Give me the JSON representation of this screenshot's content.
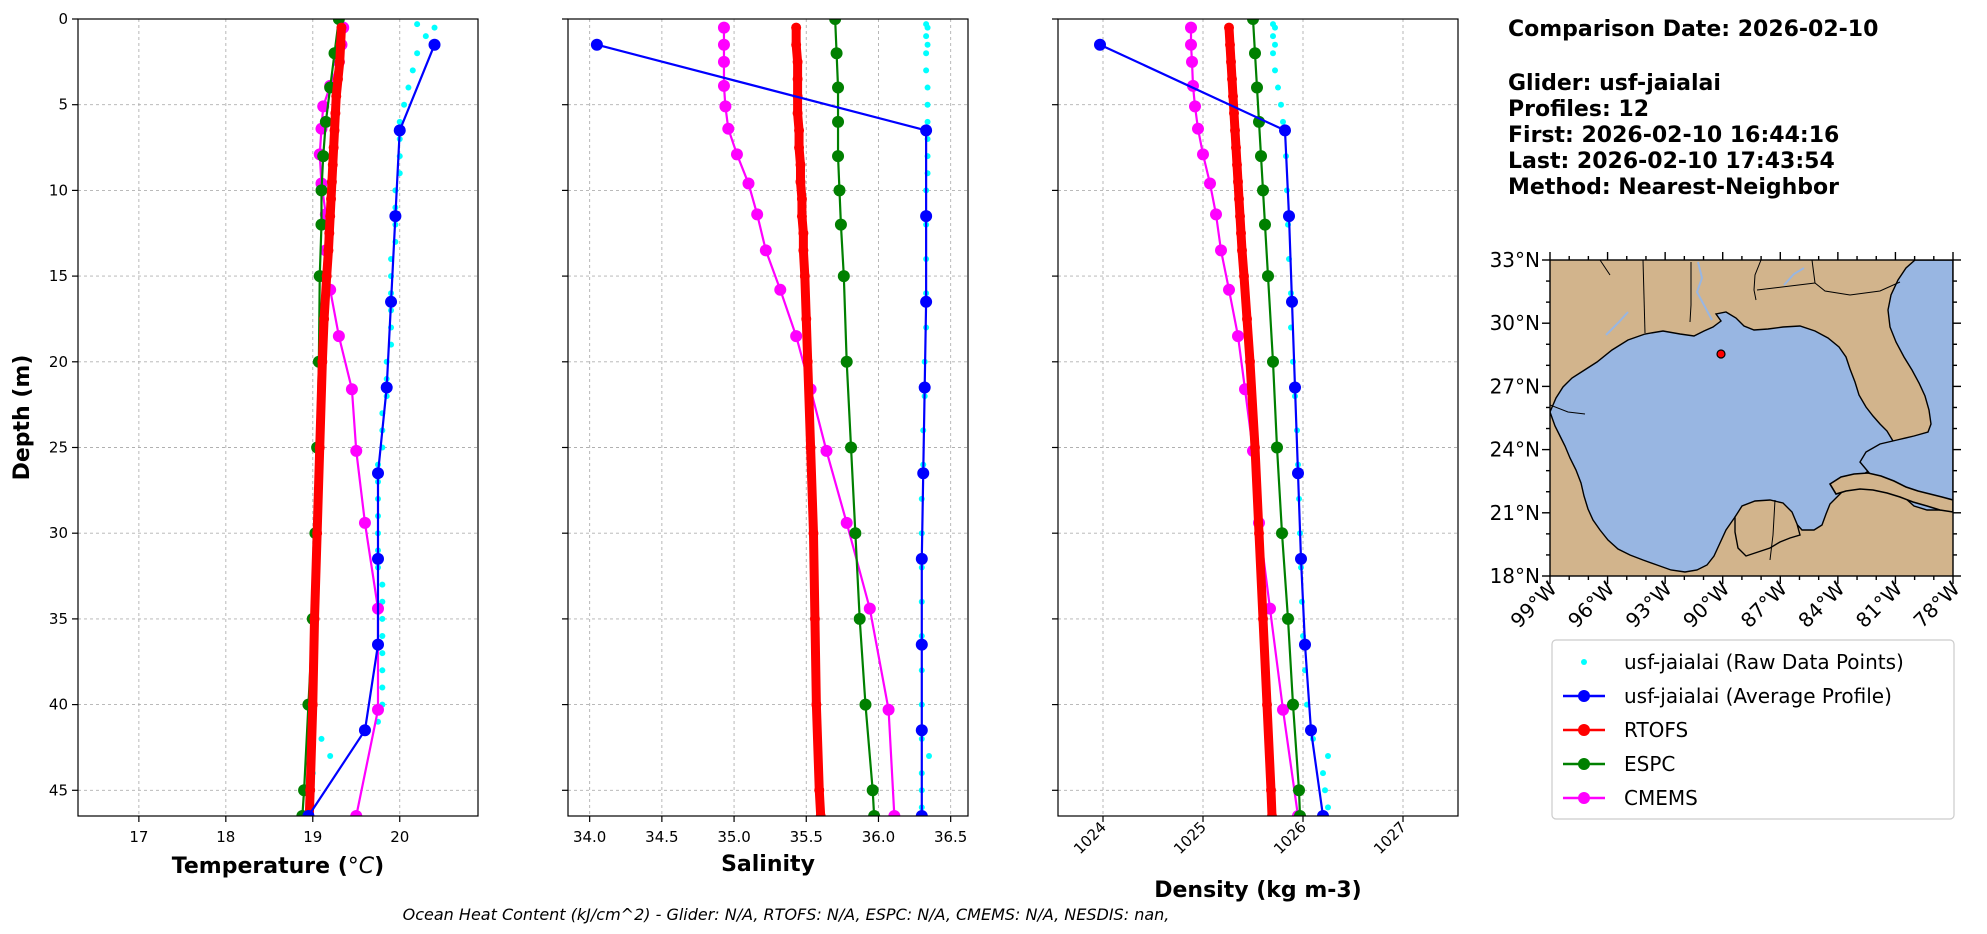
{
  "info": {
    "comparison_date": "Comparison Date: 2026-02-10",
    "glider": "Glider: usf-jaialai",
    "profiles": "Profiles: 12",
    "first": "First: 2026-02-10 16:44:16",
    "last": "Last: 2026-02-10 17:43:54",
    "method": "Method: Nearest-Neighbor"
  },
  "footer": "Ocean Heat Content (kJ/cm^2) - Glider: N/A,  RTOFS: N/A,  ESPC: N/A,  CMEMS: N/A,  NESDIS: nan,",
  "colors": {
    "raw": "#00ffff",
    "glider": "#0000ff",
    "rtofs": "#ff0000",
    "espc": "#008000",
    "cmems": "#ff00ff",
    "land": "#d2b48c",
    "ocean": "#98b6e2",
    "grid": "#b0b0b0"
  },
  "legend": [
    {
      "key": "raw",
      "label": "usf-jaialai (Raw Data Points)",
      "style": "points"
    },
    {
      "key": "glider",
      "label": "usf-jaialai (Average Profile)",
      "style": "line"
    },
    {
      "key": "rtofs",
      "label": "RTOFS",
      "style": "line"
    },
    {
      "key": "espc",
      "label": "ESPC",
      "style": "line"
    },
    {
      "key": "cmems",
      "label": "CMEMS",
      "style": "line"
    }
  ],
  "map": {
    "lon_ticks": [
      "99°W",
      "96°W",
      "93°W",
      "90°W",
      "87°W",
      "84°W",
      "81°W",
      "78°W"
    ],
    "lat_ticks": [
      "33°N",
      "30°N",
      "27°N",
      "24°N",
      "21°N",
      "18°N"
    ],
    "extent": {
      "lon": [
        -99,
        -78
      ],
      "lat": [
        18,
        33
      ]
    },
    "glider_position": {
      "lon": -90.0,
      "lat": 29.0
    }
  },
  "chart_data": [
    {
      "type": "line",
      "xlabel": "Temperature (°C)",
      "ylabel": "Depth (m)",
      "xlim": [
        16.3,
        20.9
      ],
      "ylim": [
        46.5,
        0
      ],
      "xticks": [
        17,
        18,
        19,
        20
      ],
      "yticks": [
        0,
        5,
        10,
        15,
        20,
        25,
        30,
        35,
        40,
        45
      ],
      "grid": true,
      "series": [
        {
          "name": "usf-jaialai (Raw Data Points)",
          "key": "raw",
          "style": "points",
          "depth": [
            0.3,
            0.5,
            1.0,
            1.5,
            2.0,
            3.0,
            4.0,
            5.0,
            6.0,
            7.0,
            8.0,
            9.0,
            10.0,
            11.0,
            12.0,
            13.0,
            14.0,
            15.0,
            16.0,
            17.0,
            18.0,
            19.0,
            20.0,
            21.0,
            22.0,
            23.0,
            24.0,
            25.0,
            26.0,
            27.0,
            28.0,
            29.0,
            30.0,
            31.0,
            32.0,
            33.0,
            34.0,
            35.0,
            36.0,
            37.0,
            38.0,
            39.0,
            40.0,
            41.0,
            42.0,
            43.0,
            44.0,
            45.0,
            46.0
          ],
          "values": [
            20.2,
            20.4,
            20.3,
            20.4,
            20.2,
            20.15,
            20.1,
            20.05,
            20.0,
            20.0,
            20.0,
            20.0,
            19.95,
            19.95,
            19.95,
            19.95,
            19.9,
            19.9,
            19.9,
            19.9,
            19.9,
            19.9,
            19.85,
            19.85,
            19.85,
            19.8,
            19.8,
            19.8,
            19.75,
            19.75,
            19.75,
            19.75,
            19.75,
            19.75,
            19.75,
            19.8,
            19.8,
            19.8,
            19.8,
            19.8,
            19.8,
            19.8,
            19.8,
            19.75,
            19.1,
            19.2,
            19.0,
            18.9,
            18.95
          ]
        },
        {
          "name": "usf-jaialai (Average Profile)",
          "key": "glider",
          "style": "line",
          "depth": [
            1.5,
            6.5,
            11.5,
            16.5,
            21.5,
            26.5,
            31.5,
            36.5,
            41.5,
            46.5
          ],
          "values": [
            20.4,
            20.0,
            19.95,
            19.9,
            19.85,
            19.75,
            19.75,
            19.75,
            19.6,
            18.95
          ]
        },
        {
          "name": "RTOFS",
          "key": "rtofs",
          "style": "thick",
          "depth": [
            0.5,
            1.5,
            2.5,
            3.5,
            4.5,
            5.5,
            6.5,
            7.5,
            8.5,
            9.5,
            10.5,
            11.5,
            12.5,
            13.5,
            15.0,
            17.5,
            20.0,
            25.0,
            30.0,
            35.0,
            40.0,
            45.0,
            46.5
          ],
          "values": [
            19.33,
            19.32,
            19.31,
            19.29,
            19.27,
            19.26,
            19.25,
            19.24,
            19.23,
            19.22,
            19.21,
            19.2,
            19.19,
            19.18,
            19.16,
            19.13,
            19.11,
            19.08,
            19.05,
            19.02,
            19.0,
            18.97,
            18.96
          ]
        },
        {
          "name": "ESPC",
          "key": "espc",
          "style": "line",
          "depth": [
            0.0,
            2.0,
            4.0,
            6.0,
            8.0,
            10.0,
            12.0,
            15.0,
            20.0,
            25.0,
            30.0,
            35.0,
            40.0,
            45.0,
            46.5
          ],
          "values": [
            19.3,
            19.25,
            19.2,
            19.15,
            19.12,
            19.1,
            19.1,
            19.08,
            19.07,
            19.05,
            19.03,
            19.0,
            18.95,
            18.9,
            18.88
          ]
        },
        {
          "name": "CMEMS",
          "key": "cmems",
          "style": "line",
          "depth": [
            0.5,
            1.5,
            2.5,
            3.9,
            5.1,
            6.4,
            7.9,
            9.6,
            11.4,
            13.5,
            15.8,
            18.5,
            21.6,
            25.2,
            29.4,
            34.4,
            40.3,
            46.5
          ],
          "values": [
            19.35,
            19.33,
            19.3,
            19.2,
            19.12,
            19.1,
            19.08,
            19.1,
            19.15,
            19.15,
            19.2,
            19.3,
            19.45,
            19.5,
            19.6,
            19.75,
            19.75,
            19.5
          ]
        }
      ]
    },
    {
      "type": "line",
      "xlabel": "Salinity",
      "ylabel": "",
      "xlim": [
        33.85,
        36.62
      ],
      "ylim": [
        46.5,
        0
      ],
      "xticks": [
        34.0,
        34.5,
        35.0,
        35.5,
        36.0,
        36.5
      ],
      "xtick_labels": [
        "34.0",
        "34.5",
        "35.0",
        "35.5",
        "36.0",
        "36.5"
      ],
      "yticks": [
        0,
        5,
        10,
        15,
        20,
        25,
        30,
        35,
        40,
        45
      ],
      "grid": true,
      "series": [
        {
          "name": "usf-jaialai (Raw Data Points)",
          "key": "raw",
          "style": "points",
          "depth": [
            0.3,
            0.5,
            1.0,
            1.5,
            2.0,
            3.0,
            4.0,
            5.0,
            6.0,
            7.0,
            8.0,
            9.0,
            10.0,
            12.0,
            14.0,
            16.0,
            18.0,
            20.0,
            22.0,
            24.0,
            26.0,
            28.0,
            30.0,
            32.0,
            34.0,
            36.0,
            38.0,
            40.0,
            42.0,
            43.0,
            44.0,
            45.0,
            46.0
          ],
          "values": [
            36.33,
            36.34,
            36.33,
            36.34,
            36.33,
            36.33,
            36.34,
            36.34,
            36.34,
            36.34,
            36.34,
            36.34,
            36.33,
            36.33,
            36.33,
            36.33,
            36.33,
            36.32,
            36.32,
            36.31,
            36.31,
            36.3,
            36.3,
            36.3,
            36.3,
            36.3,
            36.3,
            36.3,
            36.3,
            36.35,
            36.3,
            36.3,
            36.3
          ]
        },
        {
          "name": "usf-jaialai (Average Profile)",
          "key": "glider",
          "style": "line",
          "depth": [
            1.5,
            6.5,
            11.5,
            16.5,
            21.5,
            26.5,
            31.5,
            36.5,
            41.5,
            46.5
          ],
          "values": [
            34.05,
            36.33,
            36.33,
            36.33,
            36.32,
            36.31,
            36.3,
            36.3,
            36.3,
            36.3
          ]
        },
        {
          "name": "RTOFS",
          "key": "rtofs",
          "style": "thick",
          "depth": [
            0.5,
            1.5,
            2.5,
            3.5,
            4.5,
            5.5,
            6.5,
            7.5,
            8.5,
            9.5,
            10.5,
            11.5,
            12.5,
            13.5,
            15.0,
            17.5,
            20.0,
            25.0,
            30.0,
            35.0,
            40.0,
            45.0,
            46.5
          ],
          "values": [
            35.43,
            35.43,
            35.44,
            35.44,
            35.44,
            35.44,
            35.45,
            35.45,
            35.46,
            35.46,
            35.47,
            35.47,
            35.48,
            35.48,
            35.49,
            35.5,
            35.51,
            35.53,
            35.55,
            35.56,
            35.57,
            35.59,
            35.6
          ]
        },
        {
          "name": "ESPC",
          "key": "espc",
          "style": "line",
          "depth": [
            0.0,
            2.0,
            4.0,
            6.0,
            8.0,
            10.0,
            12.0,
            15.0,
            20.0,
            25.0,
            30.0,
            35.0,
            40.0,
            45.0,
            46.5
          ],
          "values": [
            35.7,
            35.71,
            35.72,
            35.72,
            35.72,
            35.73,
            35.74,
            35.76,
            35.78,
            35.81,
            35.84,
            35.87,
            35.91,
            35.96,
            35.97
          ]
        },
        {
          "name": "CMEMS",
          "key": "cmems",
          "style": "line",
          "depth": [
            0.5,
            1.5,
            2.5,
            3.9,
            5.1,
            6.4,
            7.9,
            9.6,
            11.4,
            13.5,
            15.8,
            18.5,
            21.6,
            25.2,
            29.4,
            34.4,
            40.3,
            46.5
          ],
          "values": [
            34.93,
            34.93,
            34.93,
            34.93,
            34.94,
            34.96,
            35.02,
            35.1,
            35.16,
            35.22,
            35.32,
            35.43,
            35.53,
            35.64,
            35.78,
            35.94,
            36.07,
            36.11
          ]
        }
      ]
    },
    {
      "type": "line",
      "xlabel": "Density (kg m-3)",
      "ylabel": "",
      "xlim": [
        1023.55,
        1027.55
      ],
      "ylim": [
        46.5,
        0
      ],
      "xticks": [
        1024,
        1025,
        1026,
        1027
      ],
      "yticks": [
        0,
        5,
        10,
        15,
        20,
        25,
        30,
        35,
        40,
        45
      ],
      "grid": true,
      "series": [
        {
          "name": "usf-jaialai (Raw Data Points)",
          "key": "raw",
          "style": "points",
          "depth": [
            0.3,
            0.5,
            1.0,
            1.5,
            2.0,
            3.0,
            4.0,
            5.0,
            6.0,
            8.0,
            10.0,
            12.0,
            14.0,
            16.0,
            18.0,
            20.0,
            22.0,
            24.0,
            26.0,
            28.0,
            30.0,
            32.0,
            34.0,
            36.0,
            38.0,
            40.0,
            42.0,
            43.0,
            44.0,
            45.0,
            46.0
          ],
          "values": [
            1025.7,
            1025.72,
            1025.7,
            1025.72,
            1025.7,
            1025.72,
            1025.75,
            1025.78,
            1025.8,
            1025.83,
            1025.84,
            1025.85,
            1025.86,
            1025.88,
            1025.88,
            1025.9,
            1025.92,
            1025.94,
            1025.95,
            1025.96,
            1025.97,
            1025.98,
            1025.99,
            1026.0,
            1026.02,
            1026.04,
            1026.1,
            1026.25,
            1026.2,
            1026.22,
            1026.25
          ]
        },
        {
          "name": "usf-jaialai (Average Profile)",
          "key": "glider",
          "style": "line",
          "depth": [
            1.5,
            6.5,
            11.5,
            16.5,
            21.5,
            26.5,
            31.5,
            36.5,
            41.5,
            46.5
          ],
          "values": [
            1023.97,
            1025.82,
            1025.86,
            1025.89,
            1025.92,
            1025.95,
            1025.98,
            1026.02,
            1026.08,
            1026.2
          ]
        },
        {
          "name": "RTOFS",
          "key": "rtofs",
          "style": "thick",
          "depth": [
            0.5,
            1.5,
            2.5,
            3.5,
            4.5,
            5.5,
            6.5,
            7.5,
            8.5,
            9.5,
            10.5,
            11.5,
            12.5,
            13.5,
            15.0,
            17.5,
            20.0,
            25.0,
            30.0,
            35.0,
            40.0,
            45.0,
            46.5
          ],
          "values": [
            1025.26,
            1025.27,
            1025.28,
            1025.29,
            1025.3,
            1025.31,
            1025.32,
            1025.33,
            1025.34,
            1025.35,
            1025.36,
            1025.37,
            1025.38,
            1025.39,
            1025.41,
            1025.44,
            1025.47,
            1025.52,
            1025.56,
            1025.6,
            1025.64,
            1025.68,
            1025.69
          ]
        },
        {
          "name": "ESPC",
          "key": "espc",
          "style": "line",
          "depth": [
            0.0,
            2.0,
            4.0,
            6.0,
            8.0,
            10.0,
            12.0,
            15.0,
            20.0,
            25.0,
            30.0,
            35.0,
            40.0,
            45.0,
            46.5
          ],
          "values": [
            1025.5,
            1025.52,
            1025.54,
            1025.56,
            1025.58,
            1025.6,
            1025.62,
            1025.65,
            1025.7,
            1025.74,
            1025.79,
            1025.85,
            1025.9,
            1025.96,
            1025.97
          ]
        },
        {
          "name": "CMEMS",
          "key": "cmems",
          "style": "line",
          "depth": [
            0.5,
            1.5,
            2.5,
            3.9,
            5.1,
            6.4,
            7.9,
            9.6,
            11.4,
            13.5,
            15.8,
            18.5,
            21.6,
            25.2,
            29.4,
            34.4,
            40.3,
            46.5
          ],
          "values": [
            1024.88,
            1024.88,
            1024.89,
            1024.9,
            1024.92,
            1024.95,
            1025.0,
            1025.07,
            1025.13,
            1025.18,
            1025.26,
            1025.35,
            1025.42,
            1025.5,
            1025.56,
            1025.67,
            1025.8,
            1025.95
          ]
        }
      ]
    }
  ]
}
